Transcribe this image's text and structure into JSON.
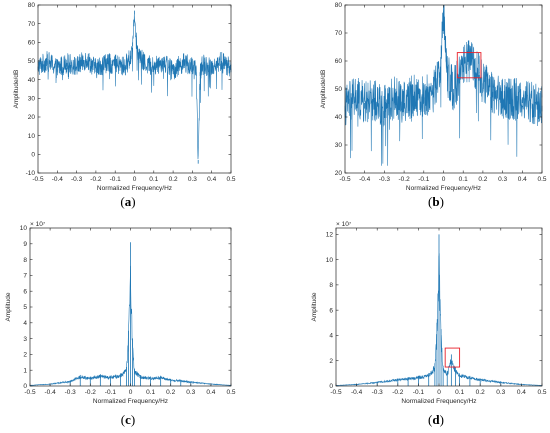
{
  "colors": {
    "line": "#1f77b4",
    "axes": "#262626",
    "highlight": "#e8202a"
  },
  "chart_data": [
    {
      "type": "line",
      "panel_label": "(a)",
      "xlabel": "Normalized Frequency/Hz",
      "ylabel": "Amplitude/dB",
      "xlim": [
        -0.5,
        0.5
      ],
      "ylim": [
        -10,
        80
      ],
      "xticks": [
        -0.5,
        -0.4,
        -0.3,
        -0.2,
        -0.1,
        0,
        0.1,
        0.2,
        0.3,
        0.4,
        0.5
      ],
      "xtick_labels": [
        "-0.5",
        "-0.4",
        "-0.3",
        "-0.2",
        "-0.1",
        "0",
        "0.1",
        "0.2",
        "0.3",
        "0.4",
        "0.5"
      ],
      "yticks": [
        -10,
        0,
        10,
        20,
        30,
        40,
        50,
        60,
        70,
        80
      ],
      "ytick_labels": [
        "-10",
        "0",
        "10",
        "20",
        "30",
        "40",
        "50",
        "60",
        "70",
        "80"
      ],
      "exponent_label": "",
      "highlight_box": null,
      "series": [
        {
          "x": [
            -0.5,
            -0.45,
            -0.4,
            -0.35,
            -0.3,
            -0.25,
            -0.2,
            -0.15,
            -0.1,
            -0.05,
            -0.02,
            -0.01,
            0,
            0.01,
            0.02,
            0.05,
            0.1,
            0.15,
            0.2,
            0.25,
            0.3,
            0.32,
            0.33,
            0.34,
            0.35,
            0.4,
            0.45,
            0.5
          ],
          "values": [
            47,
            50,
            46,
            49,
            47,
            51,
            46,
            49,
            48,
            47,
            52,
            60,
            77,
            60,
            53,
            49,
            47,
            50,
            45,
            49,
            47,
            44,
            -3,
            44,
            48,
            47,
            50,
            46
          ],
          "noise_band": [
            38,
            58
          ]
        }
      ]
    },
    {
      "type": "line",
      "panel_label": "(b)",
      "xlabel": "Normalized Frequency/Hz",
      "ylabel": "Amplitude/dB",
      "xlim": [
        -0.5,
        0.5
      ],
      "ylim": [
        20,
        80
      ],
      "xticks": [
        -0.5,
        -0.4,
        -0.3,
        -0.2,
        -0.1,
        0,
        0.1,
        0.2,
        0.3,
        0.4,
        0.5
      ],
      "xtick_labels": [
        "-0.5",
        "-0.4",
        "-0.3",
        "-0.2",
        "-0.1",
        "0",
        "0.1",
        "0.2",
        "0.3",
        "0.4",
        "0.5"
      ],
      "yticks": [
        20,
        30,
        40,
        50,
        60,
        70,
        80
      ],
      "ytick_labels": [
        "20",
        "30",
        "40",
        "50",
        "60",
        "70",
        "80"
      ],
      "exponent_label": "",
      "highlight_box": {
        "x": [
          0.07,
          0.19
        ],
        "y": [
          54,
          63
        ]
      },
      "series": [
        {
          "x": [
            -0.5,
            -0.45,
            -0.4,
            -0.35,
            -0.3,
            -0.25,
            -0.2,
            -0.15,
            -0.1,
            -0.05,
            -0.02,
            -0.01,
            0,
            0.01,
            0.02,
            0.05,
            0.08,
            0.1,
            0.13,
            0.16,
            0.18,
            0.2,
            0.25,
            0.3,
            0.35,
            0.4,
            0.45,
            0.5
          ],
          "values": [
            44,
            47,
            45,
            46,
            44,
            47,
            45,
            48,
            47,
            49,
            56,
            65,
            78,
            65,
            55,
            50,
            54,
            58,
            60,
            58,
            55,
            52,
            49,
            47,
            46,
            47,
            45,
            44
          ],
          "noise_band": [
            28,
            56
          ]
        }
      ]
    },
    {
      "type": "line",
      "panel_label": "(c)",
      "xlabel": "Normalized Frequency/Hz",
      "ylabel": "Amplitude",
      "xlim": [
        -0.5,
        0.5
      ],
      "ylim": [
        0,
        10
      ],
      "xticks": [
        -0.5,
        -0.4,
        -0.3,
        -0.2,
        -0.1,
        0,
        0.1,
        0.2,
        0.3,
        0.4,
        0.5
      ],
      "xtick_labels": [
        "-0.5",
        "-0.4",
        "-0.3",
        "-0.2",
        "-0.1",
        "0",
        "0.1",
        "0.2",
        "0.3",
        "0.4",
        "0.5"
      ],
      "yticks": [
        0,
        1,
        2,
        3,
        4,
        5,
        6,
        7,
        8,
        9,
        10
      ],
      "ytick_labels": [
        "0",
        "1",
        "2",
        "3",
        "4",
        "5",
        "6",
        "7",
        "8",
        "9",
        "10"
      ],
      "exponent_label": "× 10⁷",
      "highlight_box": null,
      "series": [
        {
          "x": [
            -0.5,
            -0.4,
            -0.3,
            -0.25,
            -0.2,
            -0.15,
            -0.1,
            -0.05,
            -0.02,
            -0.01,
            0,
            0.01,
            0.02,
            0.05,
            0.1,
            0.15,
            0.2,
            0.25,
            0.3,
            0.4,
            0.5
          ],
          "values": [
            0.05,
            0.15,
            0.35,
            0.7,
            0.6,
            0.75,
            0.65,
            0.8,
            1.2,
            3.5,
            9.1,
            3.0,
            1.1,
            0.7,
            0.6,
            0.65,
            0.45,
            0.4,
            0.3,
            0.15,
            0.05
          ],
          "noise_band": [
            0,
            0.35
          ]
        }
      ]
    },
    {
      "type": "line",
      "panel_label": "(d)",
      "xlabel": "Normalized Frequency/Hz",
      "ylabel": "Amplitude",
      "xlim": [
        -0.5,
        0.5
      ],
      "ylim": [
        0,
        12.5
      ],
      "xticks": [
        -0.5,
        -0.4,
        -0.3,
        -0.2,
        -0.1,
        0,
        0.1,
        0.2,
        0.3,
        0.4,
        0.5
      ],
      "xtick_labels": [
        "-0.5",
        "-0.4",
        "-0.3",
        "-0.2",
        "-0.1",
        "0",
        "0.1",
        "0.2",
        "0.3",
        "0.4",
        "0.5"
      ],
      "yticks": [
        0,
        2,
        4,
        6,
        8,
        10,
        12
      ],
      "ytick_labels": [
        "0",
        "2",
        "4",
        "6",
        "8",
        "10",
        "12"
      ],
      "exponent_label": "× 10⁷",
      "highlight_box": {
        "x": [
          0.03,
          0.1
        ],
        "y": [
          1.5,
          3.0
        ]
      },
      "series": [
        {
          "x": [
            -0.5,
            -0.4,
            -0.3,
            -0.2,
            -0.15,
            -0.1,
            -0.05,
            -0.02,
            -0.01,
            0,
            0.01,
            0.02,
            0.04,
            0.06,
            0.08,
            0.1,
            0.15,
            0.2,
            0.3,
            0.4,
            0.5
          ],
          "values": [
            0.05,
            0.15,
            0.35,
            0.6,
            0.7,
            0.8,
            1.0,
            1.8,
            5.0,
            12.0,
            4.5,
            1.6,
            1.2,
            2.5,
            1.5,
            1.0,
            0.8,
            0.6,
            0.35,
            0.15,
            0.05
          ],
          "noise_band": [
            0,
            0.4
          ]
        }
      ]
    }
  ]
}
